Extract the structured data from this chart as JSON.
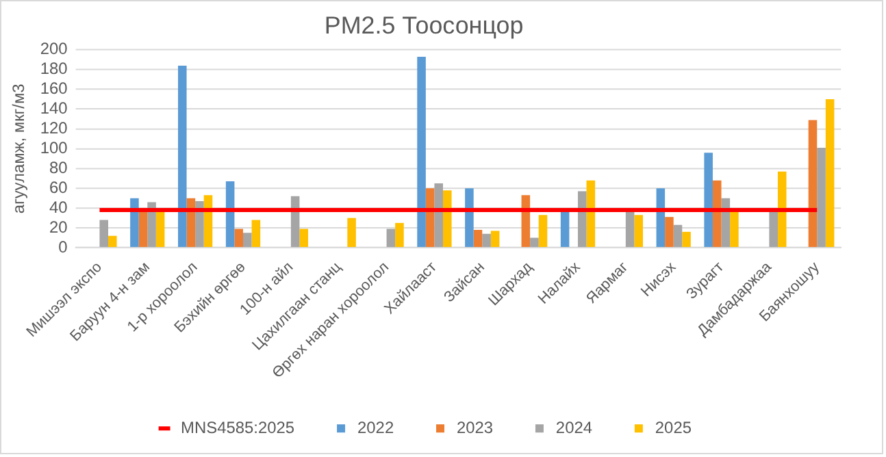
{
  "chart_data": {
    "type": "bar",
    "title": "PM2.5 Тоосонцор",
    "ylabel": "агууламж, мкг/м3",
    "categories": [
      "Мишээл экспо",
      "Баруун 4-н зам",
      "1-р хороолол",
      "Бэхийн өргөө",
      "100-н айл",
      "Цахилгаан станц",
      "Өргөх наран хороолол",
      "Хайлааст",
      "Зайсан",
      "Шархад",
      "Налайх",
      "Яармаг",
      "Нисэх",
      "Зурагт",
      "Дамбадаржаа",
      "Баянхошуу"
    ],
    "series": [
      {
        "name": "2022",
        "color": "#5b9bd5",
        "values": [
          null,
          50,
          184,
          67,
          null,
          null,
          null,
          193,
          60,
          null,
          37,
          null,
          60,
          96,
          null,
          null
        ]
      },
      {
        "name": "2023",
        "color": "#ed7d31",
        "values": [
          null,
          38,
          50,
          19,
          null,
          null,
          null,
          60,
          18,
          53,
          null,
          null,
          31,
          68,
          null,
          129
        ]
      },
      {
        "name": "2024",
        "color": "#a5a5a5",
        "values": [
          28,
          46,
          47,
          15,
          52,
          null,
          19,
          65,
          14,
          10,
          57,
          37,
          23,
          50,
          37,
          101
        ]
      },
      {
        "name": "2025",
        "color": "#ffc000",
        "values": [
          12,
          37,
          53,
          28,
          19,
          30,
          25,
          58,
          17,
          33,
          68,
          33,
          16,
          37,
          77,
          150
        ]
      },
      {
        "name": "MNS4585:2025",
        "type": "line",
        "color": "#ff0000",
        "values": [
          38,
          38,
          38,
          38,
          38,
          38,
          38,
          38,
          38,
          38,
          38,
          38,
          38,
          38,
          38,
          38
        ]
      }
    ],
    "ylim": [
      0,
      200
    ],
    "yticks": [
      0,
      20,
      40,
      60,
      80,
      100,
      120,
      140,
      160,
      180,
      200
    ],
    "grid": "y",
    "legend": "bottom"
  }
}
